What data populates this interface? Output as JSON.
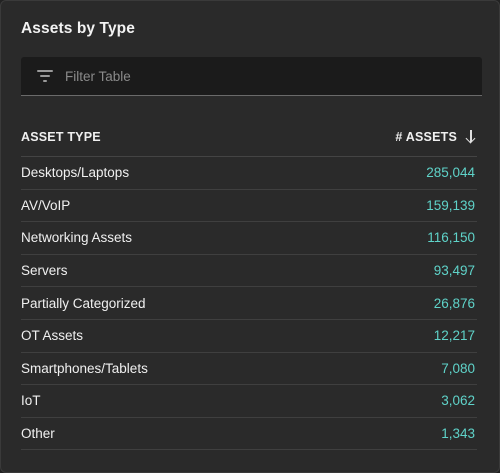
{
  "widget": {
    "title": "Assets by Type"
  },
  "filter": {
    "placeholder": "Filter Table"
  },
  "table": {
    "columns": {
      "asset_type": "ASSET TYPE",
      "asset_count": "# ASSETS"
    },
    "sort": "descending",
    "rows": [
      {
        "type": "Desktops/Laptops",
        "count": "285,044"
      },
      {
        "type": "AV/VoIP",
        "count": "159,139"
      },
      {
        "type": "Networking Assets",
        "count": "116,150"
      },
      {
        "type": "Servers",
        "count": "93,497"
      },
      {
        "type": "Partially Categorized",
        "count": "26,876"
      },
      {
        "type": "OT Assets",
        "count": "12,217"
      },
      {
        "type": "Smartphones/Tablets",
        "count": "7,080"
      },
      {
        "type": "IoT",
        "count": "3,062"
      },
      {
        "type": "Other",
        "count": "1,343"
      }
    ]
  },
  "colors": {
    "panel_bg": "#2a2a2a",
    "count_accent": "#5fd3c9",
    "filter_bg": "#1b1b1b"
  },
  "icons": {
    "filter": "filter-icon",
    "sort": "arrow-down-icon"
  }
}
